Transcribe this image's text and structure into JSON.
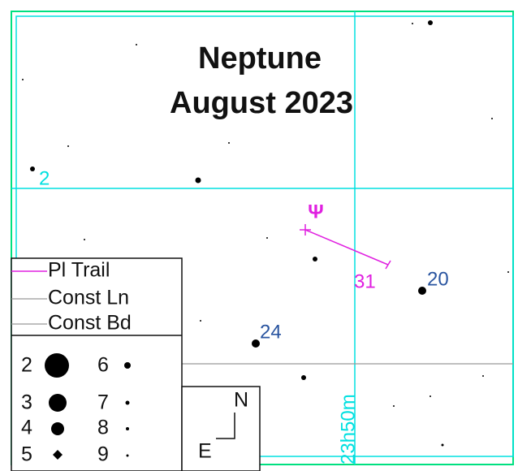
{
  "title": {
    "line1": "Neptune",
    "line2": "August 2023"
  },
  "grid_labels": {
    "declination": "2",
    "right_ascension": "23h50m"
  },
  "planet": {
    "symbol": "Ψ",
    "trail_end_label": "31"
  },
  "star_labels": [
    "20",
    "24"
  ],
  "legend": {
    "entries": [
      "Pl Trail",
      "Const Ln",
      "Const Bd"
    ],
    "magnitudes": [
      "2",
      "3",
      "4",
      "5",
      "6",
      "7",
      "8",
      "9"
    ]
  },
  "compass": {
    "north": "N",
    "east": "E"
  }
}
